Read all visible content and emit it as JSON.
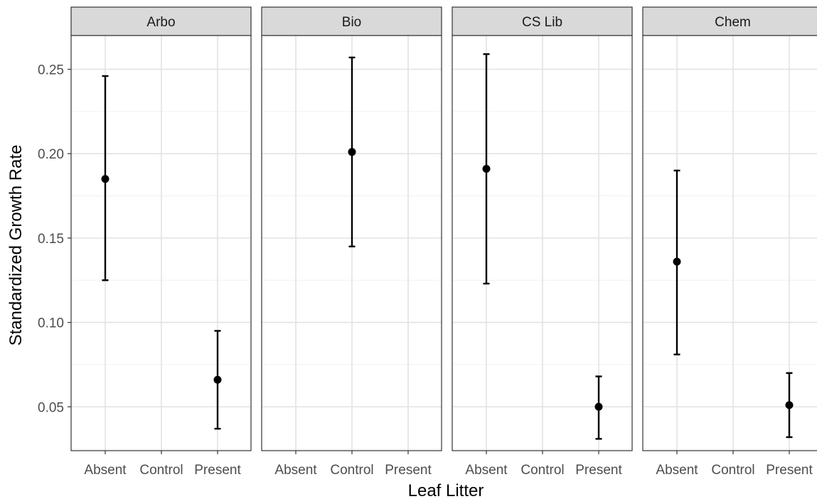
{
  "chart_data": {
    "type": "scatter",
    "variant": "faceted point with error bars",
    "xlabel": "Leaf Litter",
    "ylabel": "Standardized Growth Rate",
    "categories": [
      "Absent",
      "Control",
      "Present"
    ],
    "y_ticks": [
      "0.05",
      "0.10",
      "0.15",
      "0.20",
      "0.25"
    ],
    "ylim": [
      0.024,
      0.27
    ],
    "grid": true,
    "facets": [
      {
        "label": "Arbo",
        "points": [
          {
            "category": "Absent",
            "y": 0.185,
            "ymin": 0.125,
            "ymax": 0.246
          },
          {
            "category": "Present",
            "y": 0.066,
            "ymin": 0.037,
            "ymax": 0.095
          }
        ]
      },
      {
        "label": "Bio",
        "points": [
          {
            "category": "Control",
            "y": 0.201,
            "ymin": 0.145,
            "ymax": 0.257
          }
        ]
      },
      {
        "label": "CS Lib",
        "points": [
          {
            "category": "Absent",
            "y": 0.191,
            "ymin": 0.123,
            "ymax": 0.259
          },
          {
            "category": "Present",
            "y": 0.05,
            "ymin": 0.031,
            "ymax": 0.068
          }
        ]
      },
      {
        "label": "Chem",
        "points": [
          {
            "category": "Absent",
            "y": 0.136,
            "ymin": 0.081,
            "ymax": 0.19
          },
          {
            "category": "Present",
            "y": 0.051,
            "ymin": 0.032,
            "ymax": 0.07
          }
        ]
      }
    ]
  }
}
